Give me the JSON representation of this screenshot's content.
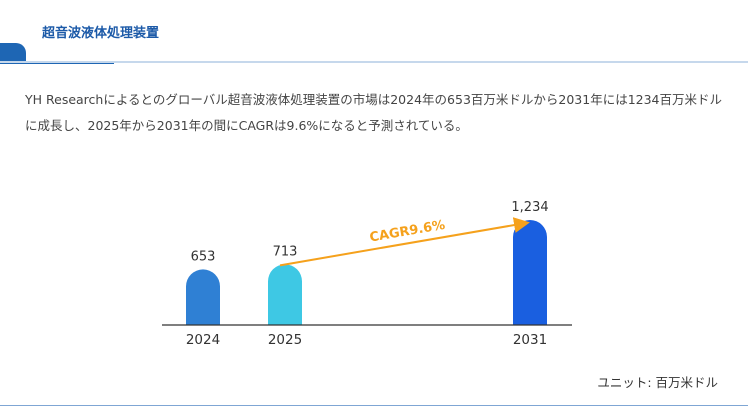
{
  "header": {
    "title": "超音波液体処理装置"
  },
  "description": "YH Researchによるとのグローバル超音波液体処理装置の市場は2024年の653百万米ドルから2031年には1234百万米ドルに成長し、2025年から2031年の間にCAGRは9.6%になると予測されている。",
  "unit_note": "ユニット: 百万米ドル",
  "chart_data": {
    "type": "bar",
    "categories": [
      "2024",
      "2025",
      "2031"
    ],
    "values": [
      653,
      713,
      1234
    ],
    "value_labels": [
      "653",
      "713",
      "1,234"
    ],
    "bar_colors": [
      "#2f80d4",
      "#3ec8e4",
      "#1a5fe0"
    ],
    "annotation": {
      "text": "CAGR9.6%",
      "from": "2025",
      "to": "2031",
      "color": "#f5a11c"
    },
    "title": "",
    "xlabel": "",
    "ylabel": ""
  }
}
